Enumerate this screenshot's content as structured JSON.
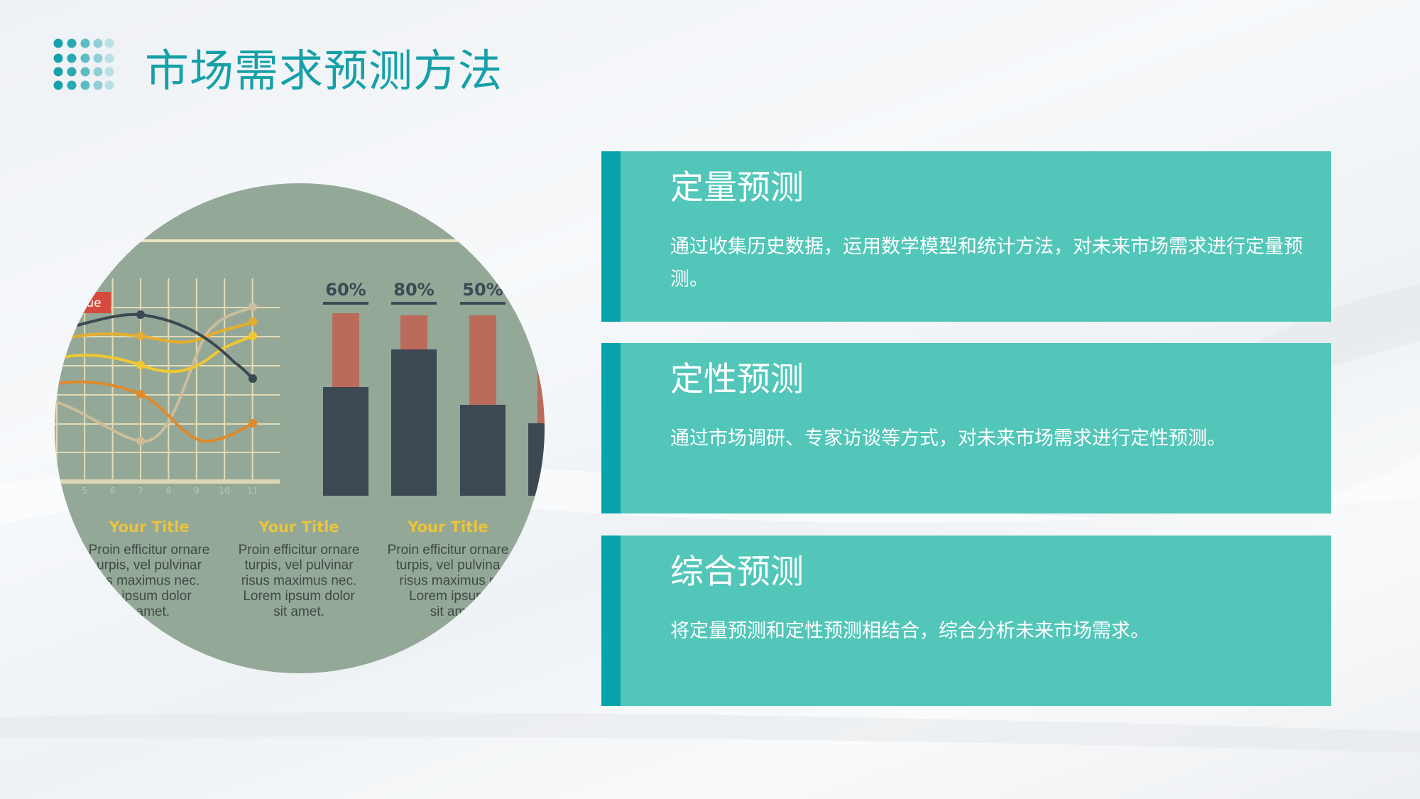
{
  "slide": {
    "title": "市场需求预测方法",
    "accent_color": "#16a0a8",
    "card_color": "#52c6b9",
    "strip_color": "#07a3ad"
  },
  "cards": [
    {
      "title": "定量预测",
      "body": "通过收集历史数据，运用数学模型和统计方法，对未来市场需求进行定量预测。"
    },
    {
      "title": "定性预测",
      "body": "通过市场调研、专家访谈等方式，对未来市场需求进行定性预测。"
    },
    {
      "title": "综合预测",
      "body": "将定量预测和定性预测相结合，综合分析未来市场需求。"
    }
  ],
  "illustration": {
    "label_tag": "ue",
    "x_ticks": [
      "5",
      "6",
      "7",
      "8",
      "9",
      "10",
      "11"
    ],
    "bar_labels": [
      "60%",
      "80%",
      "50%"
    ],
    "columns": [
      {
        "title": "Your Title",
        "lines": [
          "Proin efficitur ornare",
          "urpis, vel pulvinar",
          "us maximus nec.",
          "m ipsum dolor",
          "t amet."
        ]
      },
      {
        "title": "Your Title",
        "lines": [
          "Proin efficitur ornare",
          "turpis, vel pulvinar",
          "risus maximus nec.",
          "Lorem ipsum dolor",
          "sit amet."
        ]
      },
      {
        "title": "Your Title",
        "lines": [
          "Proin efficitur ornare",
          "turpis, vel pulvina",
          "risus maximus n",
          "Lorem ipsum",
          "sit am"
        ]
      }
    ]
  }
}
